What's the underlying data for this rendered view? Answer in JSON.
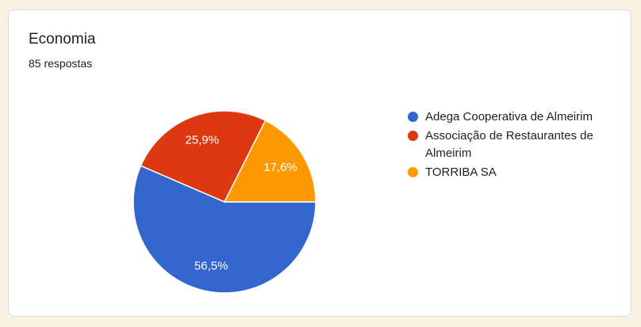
{
  "card": {
    "title": "Economia",
    "subtitle": "85 respostas"
  },
  "chart_data": {
    "type": "pie",
    "title": "Economia",
    "subtitle": "85 respostas",
    "categories": [
      "Adega Cooperativa de Almeirim",
      "Associação de Restaurantes de Almeirim",
      "TORRIBA SA"
    ],
    "values": [
      56.5,
      25.9,
      17.6
    ],
    "value_labels": [
      "56,5%",
      "25,9%",
      "17,6%"
    ],
    "colors": [
      "#3366CC",
      "#DC3912",
      "#FF9900"
    ],
    "slice_label_color": "#FFFFFF",
    "legend_position": "right",
    "start_angle_deg": 0,
    "direction": "clockwise"
  },
  "colors": {
    "page_background": "#FAF1E3",
    "card_background": "#FFFFFF",
    "card_border": "#DADCE0",
    "title_text": "#202124",
    "legend_text": "#212121"
  }
}
